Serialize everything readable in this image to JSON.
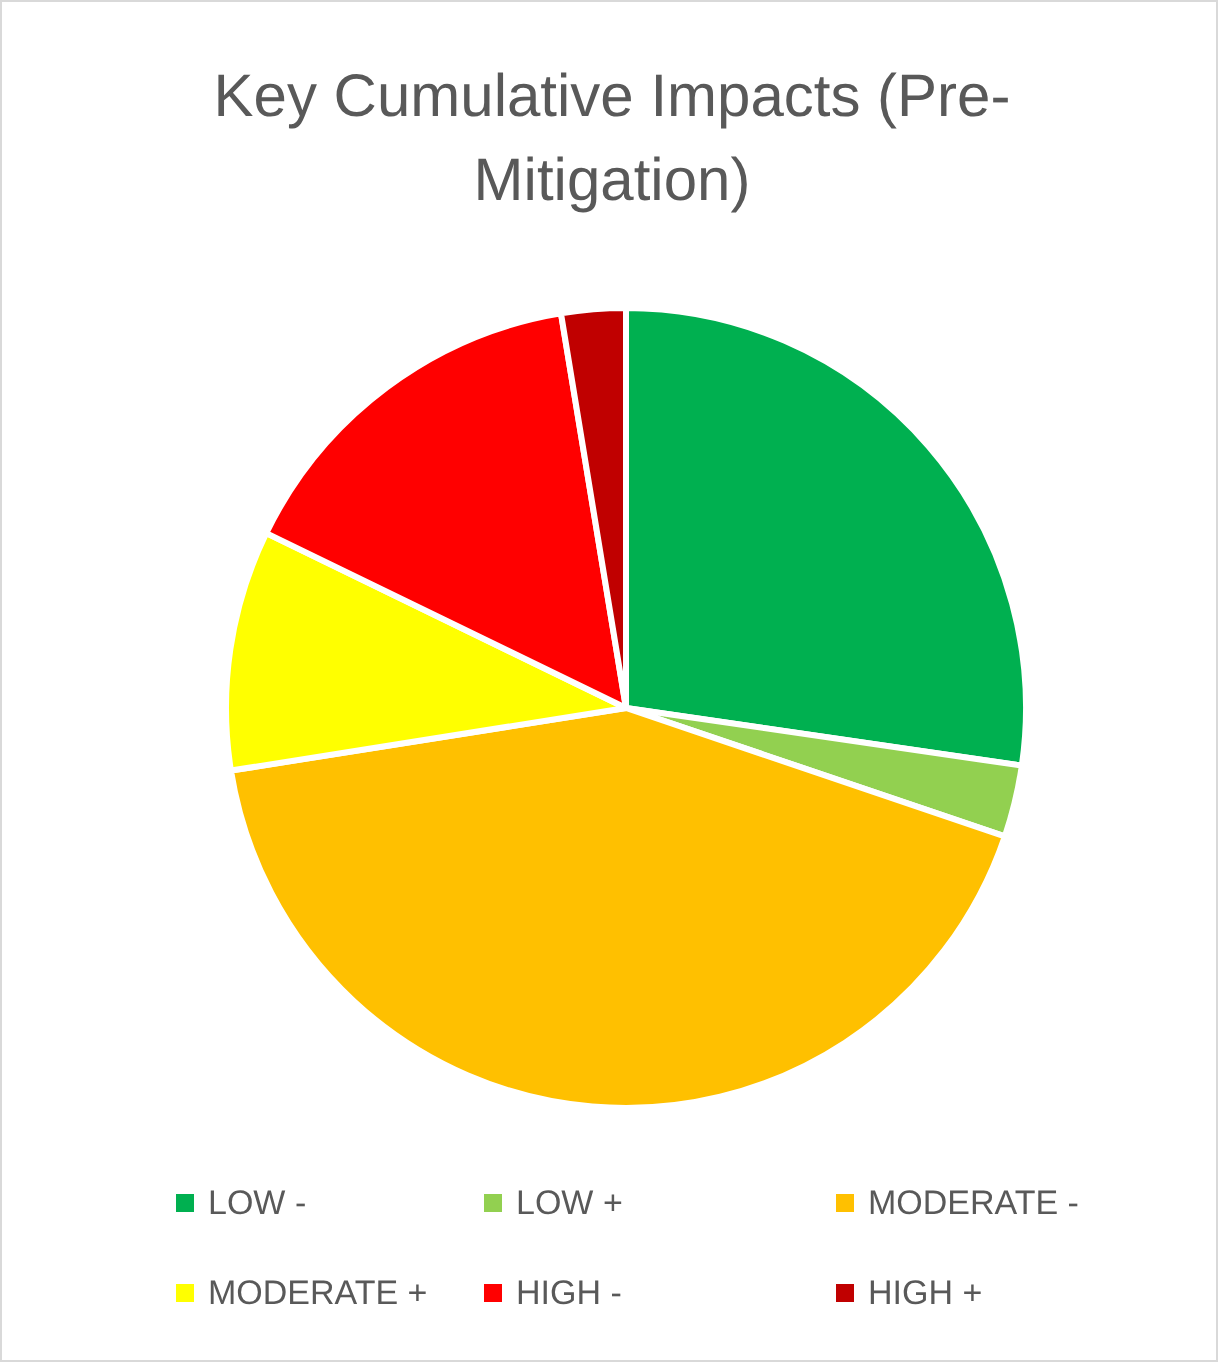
{
  "chart_data": {
    "type": "pie",
    "title": "Key Cumulative Impacts (Pre-Mitigation)",
    "categories": [
      "LOW -",
      "LOW +",
      "MODERATE -",
      "MODERATE +",
      "HIGH -",
      "HIGH +"
    ],
    "values": [
      27.3,
      2.9,
      42.3,
      9.7,
      15.2,
      2.6
    ],
    "colors": [
      "#00b050",
      "#92d050",
      "#ffc000",
      "#ffff00",
      "#ff0000",
      "#c00000"
    ],
    "legend": "bottom"
  }
}
